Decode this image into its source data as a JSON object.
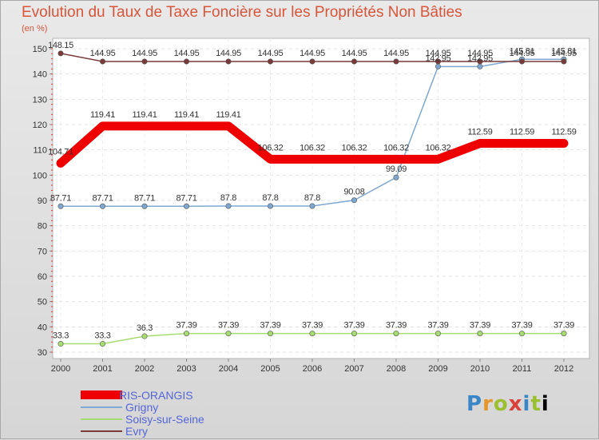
{
  "chart_data": {
    "type": "line",
    "title": "Evolution du Taux de Taxe Foncière sur les Propriétés Non Bâties",
    "ylabel": "(en %)",
    "xlabel": "",
    "ylim": [
      30,
      150
    ],
    "yticks": [
      30,
      40,
      50,
      60,
      70,
      80,
      90,
      100,
      110,
      120,
      130,
      140,
      150
    ],
    "categories": [
      "2000",
      "2001",
      "2002",
      "2003",
      "2004",
      "2005",
      "2006",
      "2007",
      "2008",
      "2009",
      "2010",
      "2011",
      "2012"
    ],
    "series": [
      {
        "name": "RIS-ORANGIS",
        "color": "#ee0000",
        "values": [
          104.71,
          119.41,
          119.41,
          119.41,
          119.41,
          106.32,
          106.32,
          106.32,
          106.32,
          106.32,
          112.59,
          112.59,
          112.59
        ],
        "labels": [
          "104.71",
          "119.41",
          "119.41",
          "119.41",
          "119.41",
          "106.32",
          "106.32",
          "106.32",
          "106.32",
          "106.32",
          "112.59",
          "112.59",
          "112.59"
        ]
      },
      {
        "name": "Grigny",
        "color": "#7fa8d0",
        "values": [
          87.71,
          87.71,
          87.71,
          87.71,
          87.8,
          87.8,
          87.8,
          90.08,
          99.09,
          142.95,
          142.95,
          145.81,
          145.81
        ],
        "labels": [
          "87.71",
          "87.71",
          "87.71",
          "87.71",
          "87.8",
          "87.8",
          "87.8",
          "90.08",
          "99.09",
          "142.95",
          "142.95",
          "145.81",
          "145.81"
        ]
      },
      {
        "name": "Soisy-sur-Seine",
        "color": "#a7dc70",
        "values": [
          33.3,
          33.3,
          36.3,
          37.39,
          37.39,
          37.39,
          37.39,
          37.39,
          37.39,
          37.39,
          37.39,
          37.39,
          37.39
        ],
        "labels": [
          "33.3",
          "33.3",
          "36.3",
          "37.39",
          "37.39",
          "37.39",
          "37.39",
          "37.39",
          "37.39",
          "37.39",
          "37.39",
          "37.39",
          "37.39"
        ]
      },
      {
        "name": "Evry",
        "color": "#7a3a3a",
        "values": [
          148.15,
          144.95,
          144.95,
          144.95,
          144.95,
          144.95,
          144.95,
          144.95,
          144.95,
          144.95,
          144.95,
          144.95,
          144.95
        ],
        "labels": [
          "148.15",
          "144.95",
          "144.95",
          "144.95",
          "144.95",
          "144.95",
          "144.95",
          "144.95",
          "144.95",
          "144.95",
          "144.95",
          "144.95",
          "144.95"
        ]
      }
    ],
    "legend_position": "bottom-left"
  },
  "logo": {
    "letters": [
      "P",
      "r",
      "o",
      "x",
      "i",
      "t",
      "i"
    ]
  }
}
